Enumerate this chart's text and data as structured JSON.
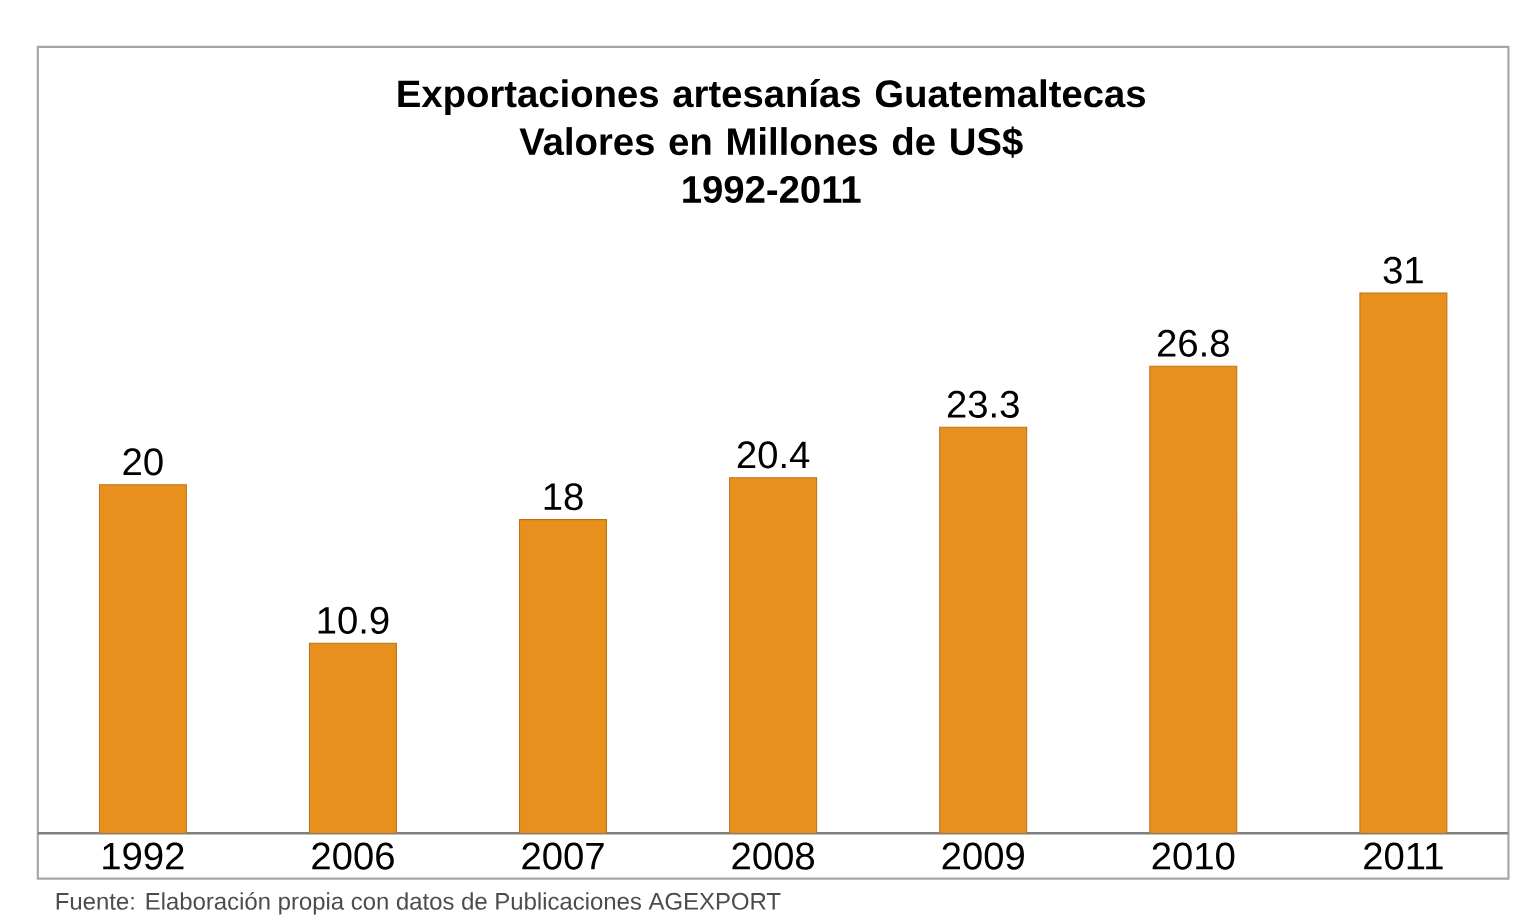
{
  "chart_data": {
    "type": "bar",
    "title": "Exportaciones artesanías Guatemaltecas",
    "subtitle": "Valores en Millones de US$\n1992-2011",
    "categories": [
      "1992",
      "2006",
      "2007",
      "2008",
      "2009",
      "2010",
      "2011"
    ],
    "values": [
      20,
      10.9,
      18,
      20.4,
      23.3,
      26.8,
      31
    ],
    "color": "#e8901e",
    "data_labels": true,
    "annotations": [
      "Fuente: Elaboración propia con datos de Publicaciones AGEXPORT"
    ]
  }
}
